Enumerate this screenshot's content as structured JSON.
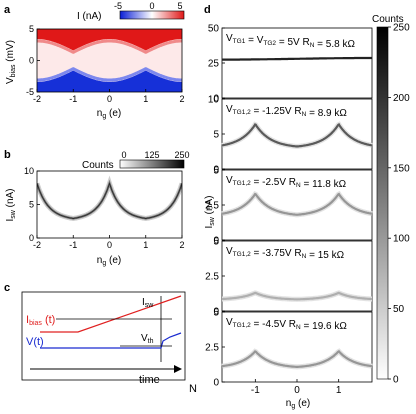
{
  "panel_labels": {
    "a": "a",
    "b": "b",
    "c": "c",
    "d": "d"
  },
  "colors": {
    "red": "#e02020",
    "blue": "#1a2bd0",
    "dark_trace": "#1a1a1a"
  },
  "chart_data": [
    {
      "id": "a",
      "type": "heatmap",
      "colorbar": {
        "label": "I (nA)",
        "ticks": [
          "-5",
          "0",
          "5"
        ],
        "range": [
          -5,
          5
        ],
        "colors": [
          "#0a1fd6",
          "#ffffff",
          "#e01818"
        ]
      },
      "xlabel": "n",
      "xlabel_sub": "g",
      "xlabel_unit": " (e)",
      "ylabel": "V",
      "ylabel_sub": "bias",
      "ylabel_unit": " (mV)",
      "x_ticks": [
        "-2",
        "-1",
        "0",
        "1",
        "2"
      ],
      "xlim": [
        -2,
        2
      ],
      "y_ticks": [
        "5",
        "0",
        "-5"
      ],
      "ylim": [
        -5,
        5
      ],
      "switch_envelope": {
        "period": 2,
        "min_mV": 1.6,
        "max_mV": 3.4
      }
    },
    {
      "id": "b",
      "type": "heatmap",
      "colorbar": {
        "label": "Counts",
        "ticks": [
          "0",
          "125",
          "250"
        ],
        "range": [
          0,
          250
        ]
      },
      "xlabel": "n",
      "xlabel_sub": "g",
      "xlabel_unit": " (e)",
      "ylabel": "I",
      "ylabel_sub": "sw",
      "ylabel_unit": " (nA)",
      "x_ticks": [
        "-2",
        "-1",
        "0",
        "1",
        "2"
      ],
      "xlim": [
        -2,
        2
      ],
      "y_ticks": [
        "10",
        "5",
        "0"
      ],
      "ylim": [
        0,
        10
      ],
      "peaks_x": [
        -1,
        1
      ],
      "peak_nA": 8.0,
      "min_nA": 2.7
    },
    {
      "id": "c",
      "type": "schematic",
      "labels": {
        "ibias_main": "I",
        "ibias_sub": "bias",
        "ibias_tail": " (t)",
        "v_main": "V(t)",
        "isw_main": "I",
        "isw_sub": "sw",
        "vth_main": "V",
        "vth_sub": "th",
        "time": "time",
        "n": "N"
      }
    },
    {
      "id": "d",
      "type": "heatmap",
      "colorbar": {
        "label": "Counts",
        "ticks": [
          "250",
          "200",
          "150",
          "100",
          "50",
          "0"
        ],
        "range": [
          0,
          250
        ]
      },
      "xlabel": "n",
      "xlabel_sub": "g",
      "xlabel_unit": " (e)",
      "ylabel": "I",
      "ylabel_sub": "sw",
      "ylabel_unit": " (nA)",
      "x_ticks": [
        "-1",
        "0",
        "1"
      ],
      "xlim": [
        -1.8,
        1.8
      ],
      "panels": [
        {
          "annotation_parts": [
            [
              "V",
              "TG1"
            ],
            [
              " = V",
              "TG2"
            ],
            [
              " = 5V  R",
              "N"
            ],
            [
              " = 5.8 kΩ",
              ""
            ]
          ],
          "y_ticks": [
            "50",
            "25",
            "0"
          ],
          "ylim": [
            0,
            50
          ],
          "base": 28,
          "amp": 2,
          "shape": "flat",
          "peak_gray": 30
        },
        {
          "annotation_parts": [
            [
              "V",
              "TG1,2"
            ],
            [
              " = -1.25V   R",
              "N"
            ],
            [
              " = 8.9 kΩ",
              ""
            ]
          ],
          "y_ticks": [
            "10",
            "5",
            "0"
          ],
          "ylim": [
            0,
            10
          ],
          "base": 3.0,
          "amp": 3.4,
          "shape": "peak",
          "peak_gray": 90
        },
        {
          "annotation_parts": [
            [
              "V",
              "TG1,2"
            ],
            [
              " = -2.5V    R",
              "N"
            ],
            [
              " = 11.8 kΩ",
              ""
            ]
          ],
          "y_ticks": [
            "5",
            "2.5",
            "0"
          ],
          "ylim": [
            0,
            5
          ],
          "base": 1.7,
          "amp": 1.6,
          "shape": "peak",
          "peak_gray": 150
        },
        {
          "annotation_parts": [
            [
              "V",
              "TG1,2"
            ],
            [
              " = -3.75V   R",
              "N"
            ],
            [
              " = 15 kΩ",
              ""
            ]
          ],
          "y_ticks": [
            "5",
            "2.5",
            "0"
          ],
          "ylim": [
            0,
            5
          ],
          "base": 0.8,
          "amp": 0.5,
          "shape": "peak",
          "peak_gray": 175
        },
        {
          "annotation_parts": [
            [
              "V",
              "TG1,2"
            ],
            [
              " = -4.5V    R",
              "N"
            ],
            [
              " = 19.6 kΩ",
              ""
            ]
          ],
          "y_ticks": [
            "5",
            "2.5",
            "0"
          ],
          "ylim": [
            0,
            5
          ],
          "base": 1.0,
          "amp": 1.2,
          "shape": "peak",
          "peak_gray": 150
        }
      ]
    }
  ]
}
